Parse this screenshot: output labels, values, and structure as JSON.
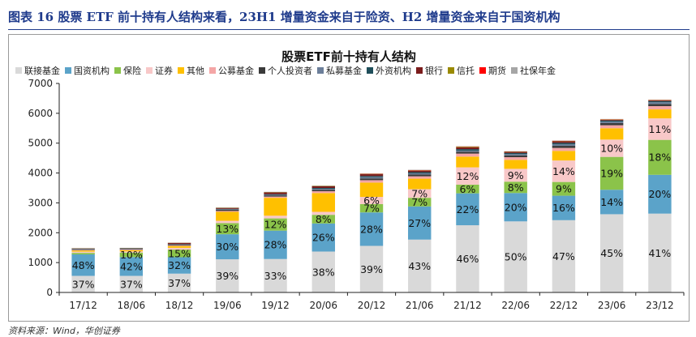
{
  "figure": {
    "heading": "图表 16   股票 ETF 前十持有人结构来看，23H1 增量资金来自于险资、H2 增量资金来自于国资机构",
    "source": "资料来源：Wind，华创证券"
  },
  "chart_data": {
    "type": "bar",
    "stacked": true,
    "title": "股票ETF前十持有人结构",
    "xlabel": "",
    "ylabel": "",
    "ylim": [
      0,
      7000
    ],
    "yticks": [
      0,
      1000,
      2000,
      3000,
      4000,
      5000,
      6000,
      7000
    ],
    "grid": false,
    "legend_position": "top",
    "categories": [
      "17/12",
      "18/06",
      "18/12",
      "19/06",
      "19/12",
      "20/06",
      "20/12",
      "21/06",
      "21/12",
      "22/06",
      "22/12",
      "23/06",
      "23/12"
    ],
    "series": [
      {
        "name": "联接基金",
        "color": "#d9d9d9",
        "values": [
          555,
          555,
          630,
          1110,
          1120,
          1370,
          1560,
          1770,
          2250,
          2380,
          2420,
          2620,
          2640
        ]
      },
      {
        "name": "国资机构",
        "color": "#5ba3c9",
        "values": [
          720,
          630,
          550,
          840,
          950,
          940,
          1120,
          1110,
          1070,
          950,
          820,
          820,
          1300
        ]
      },
      {
        "name": "保险",
        "color": "#8bc34a",
        "values": [
          50,
          150,
          255,
          370,
          410,
          290,
          280,
          290,
          290,
          380,
          460,
          1100,
          1170
        ]
      },
      {
        "name": "证券",
        "color": "#f8c8c8",
        "values": [
          40,
          40,
          60,
          80,
          90,
          100,
          240,
          290,
          580,
          430,
          720,
          580,
          720
        ]
      },
      {
        "name": "其他",
        "color": "#ffc000",
        "values": [
          40,
          40,
          60,
          300,
          600,
          630,
          480,
          350,
          360,
          300,
          320,
          380,
          300
        ]
      },
      {
        "name": "公募基金",
        "color": "#f4a6a6",
        "values": [
          20,
          20,
          20,
          30,
          40,
          60,
          80,
          80,
          100,
          90,
          100,
          100,
          110
        ]
      },
      {
        "name": "个人投资者",
        "color": "#3a3a3a",
        "values": [
          20,
          20,
          25,
          40,
          40,
          50,
          60,
          60,
          60,
          60,
          70,
          70,
          70
        ]
      },
      {
        "name": "私募基金",
        "color": "#6c7f9a",
        "values": [
          10,
          10,
          10,
          15,
          20,
          30,
          40,
          40,
          40,
          40,
          50,
          50,
          60
        ]
      },
      {
        "name": "外资机构",
        "color": "#1f4e5a",
        "values": [
          10,
          10,
          10,
          15,
          20,
          30,
          40,
          40,
          50,
          40,
          50,
          40,
          40
        ]
      },
      {
        "name": "银行",
        "color": "#7b1c1c",
        "values": [
          10,
          10,
          40,
          30,
          60,
          60,
          60,
          50,
          60,
          40,
          50,
          20,
          20
        ]
      },
      {
        "name": "信托",
        "color": "#9a8a00",
        "values": [
          5,
          5,
          5,
          10,
          10,
          10,
          10,
          10,
          20,
          10,
          10,
          10,
          10
        ]
      },
      {
        "name": "期货",
        "color": "#ff0000",
        "values": [
          0,
          0,
          0,
          0,
          0,
          0,
          10,
          10,
          10,
          5,
          10,
          10,
          10
        ]
      },
      {
        "name": "社保年金",
        "color": "#a6a6a6",
        "values": [
          5,
          5,
          5,
          10,
          10,
          10,
          10,
          10,
          10,
          5,
          10,
          10,
          10
        ]
      }
    ],
    "data_labels": [
      {
        "category": "17/12",
        "series": "联接基金",
        "text": "37%"
      },
      {
        "category": "17/12",
        "series": "国资机构",
        "text": "48%"
      },
      {
        "category": "18/06",
        "series": "联接基金",
        "text": "37%"
      },
      {
        "category": "18/06",
        "series": "国资机构",
        "text": "42%"
      },
      {
        "category": "18/06",
        "series": "保险",
        "text": "10%"
      },
      {
        "category": "18/12",
        "series": "联接基金",
        "text": "37%"
      },
      {
        "category": "18/12",
        "series": "国资机构",
        "text": "32%"
      },
      {
        "category": "18/12",
        "series": "保险",
        "text": "15%"
      },
      {
        "category": "19/06",
        "series": "联接基金",
        "text": "39%"
      },
      {
        "category": "19/06",
        "series": "国资机构",
        "text": "30%"
      },
      {
        "category": "19/06",
        "series": "保险",
        "text": "13%"
      },
      {
        "category": "19/12",
        "series": "联接基金",
        "text": "33%"
      },
      {
        "category": "19/12",
        "series": "国资机构",
        "text": "28%"
      },
      {
        "category": "19/12",
        "series": "保险",
        "text": "12%"
      },
      {
        "category": "20/06",
        "series": "联接基金",
        "text": "38%"
      },
      {
        "category": "20/06",
        "series": "国资机构",
        "text": "26%"
      },
      {
        "category": "20/06",
        "series": "保险",
        "text": "8%"
      },
      {
        "category": "20/12",
        "series": "联接基金",
        "text": "39%"
      },
      {
        "category": "20/12",
        "series": "国资机构",
        "text": "28%"
      },
      {
        "category": "20/12",
        "series": "保险",
        "text": "7%"
      },
      {
        "category": "20/12",
        "series": "证券",
        "text": "6%"
      },
      {
        "category": "21/06",
        "series": "联接基金",
        "text": "43%"
      },
      {
        "category": "21/06",
        "series": "国资机构",
        "text": "27%"
      },
      {
        "category": "21/06",
        "series": "保险",
        "text": "7%"
      },
      {
        "category": "21/06",
        "series": "证券",
        "text": "7%"
      },
      {
        "category": "21/12",
        "series": "联接基金",
        "text": "46%"
      },
      {
        "category": "21/12",
        "series": "国资机构",
        "text": "22%"
      },
      {
        "category": "21/12",
        "series": "保险",
        "text": "6%"
      },
      {
        "category": "21/12",
        "series": "证券",
        "text": "12%"
      },
      {
        "category": "22/06",
        "series": "联接基金",
        "text": "50%"
      },
      {
        "category": "22/06",
        "series": "国资机构",
        "text": "20%"
      },
      {
        "category": "22/06",
        "series": "保险",
        "text": "8%"
      },
      {
        "category": "22/06",
        "series": "证券",
        "text": "9%"
      },
      {
        "category": "22/12",
        "series": "联接基金",
        "text": "47%"
      },
      {
        "category": "22/12",
        "series": "国资机构",
        "text": "16%"
      },
      {
        "category": "22/12",
        "series": "保险",
        "text": "9%"
      },
      {
        "category": "22/12",
        "series": "证券",
        "text": "14%"
      },
      {
        "category": "23/06",
        "series": "联接基金",
        "text": "45%"
      },
      {
        "category": "23/06",
        "series": "国资机构",
        "text": "14%"
      },
      {
        "category": "23/06",
        "series": "保险",
        "text": "19%"
      },
      {
        "category": "23/06",
        "series": "证券",
        "text": "10%"
      },
      {
        "category": "23/12",
        "series": "联接基金",
        "text": "41%"
      },
      {
        "category": "23/12",
        "series": "国资机构",
        "text": "20%"
      },
      {
        "category": "23/12",
        "series": "保险",
        "text": "18%"
      },
      {
        "category": "23/12",
        "series": "证券",
        "text": "11%"
      }
    ]
  }
}
